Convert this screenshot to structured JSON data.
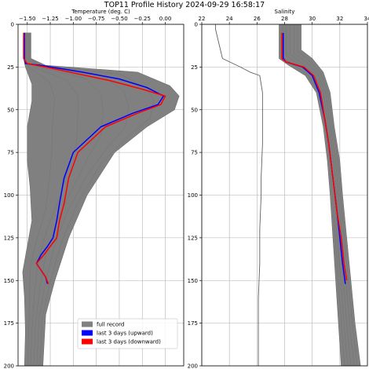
{
  "figure": {
    "title": "TOP11 Profile History 2024-09-29 16:58:17"
  },
  "chart_data": [
    {
      "type": "line",
      "xlabel": "Temperature (deg. C)",
      "ylabel": "",
      "xlim": [
        -1.6,
        0.2
      ],
      "ylim": [
        200,
        0
      ],
      "y_inverted": true,
      "grid": true,
      "xticks": [
        -1.5,
        -1.25,
        -1.0,
        -0.75,
        -0.5,
        -0.25,
        0.0
      ],
      "xtick_labels": [
        "−1.50",
        "−1.25",
        "−1.00",
        "−0.75",
        "−0.50",
        "−0.25",
        "0.00"
      ],
      "yticks": [
        0,
        25,
        50,
        75,
        100,
        125,
        150,
        175,
        200
      ],
      "ytick_labels": [
        "0",
        "25",
        "50",
        "75",
        "100",
        "125",
        "150",
        "175",
        "200"
      ],
      "legend": {
        "position": "lower-center",
        "entries": [
          {
            "label": "full record",
            "color": "#808080"
          },
          {
            "label": "last 3 days (upward)",
            "color": "#0000ff"
          },
          {
            "label": "last 3 days (downward)",
            "color": "#ff0000"
          }
        ]
      },
      "series": [
        {
          "role": "full_record_envelope",
          "color": "#808080",
          "left": [
            {
              "x": -1.54,
              "y": 5
            },
            {
              "x": -1.54,
              "y": 20
            },
            {
              "x": -1.52,
              "y": 25
            },
            {
              "x": -1.45,
              "y": 35
            },
            {
              "x": -1.45,
              "y": 45
            },
            {
              "x": -1.5,
              "y": 60
            },
            {
              "x": -1.5,
              "y": 80
            },
            {
              "x": -1.47,
              "y": 95
            },
            {
              "x": -1.45,
              "y": 115
            },
            {
              "x": -1.5,
              "y": 130
            },
            {
              "x": -1.55,
              "y": 145
            },
            {
              "x": -1.53,
              "y": 160
            },
            {
              "x": -1.52,
              "y": 180
            },
            {
              "x": -1.53,
              "y": 200
            }
          ],
          "right": [
            {
              "x": -1.46,
              "y": 5
            },
            {
              "x": -1.46,
              "y": 20
            },
            {
              "x": -1.3,
              "y": 24
            },
            {
              "x": -0.3,
              "y": 28
            },
            {
              "x": 0.05,
              "y": 36
            },
            {
              "x": 0.15,
              "y": 42
            },
            {
              "x": 0.1,
              "y": 50
            },
            {
              "x": -0.2,
              "y": 60
            },
            {
              "x": -0.55,
              "y": 75
            },
            {
              "x": -0.85,
              "y": 100
            },
            {
              "x": -1.05,
              "y": 125
            },
            {
              "x": -1.2,
              "y": 150
            },
            {
              "x": -1.3,
              "y": 170
            },
            {
              "x": -1.33,
              "y": 200
            }
          ]
        },
        {
          "name": "last 3 days (upward)",
          "color": "#0000ff",
          "x": [
            -1.53,
            -1.53,
            -1.52,
            -1.35,
            -0.9,
            -0.5,
            -0.2,
            -0.02,
            -0.08,
            -0.35,
            -0.7,
            -1.0,
            -1.1,
            -1.15,
            -1.18,
            -1.22,
            -1.28,
            -1.35,
            -1.4,
            -1.3,
            -1.28
          ],
          "y": [
            5,
            20,
            23,
            24,
            28,
            32,
            37,
            42,
            47,
            52,
            60,
            75,
            90,
            105,
            115,
            125,
            130,
            135,
            140,
            148,
            152
          ]
        },
        {
          "name": "last 3 days (downward)",
          "color": "#ff0000",
          "x": [
            -1.54,
            -1.54,
            -1.5,
            -1.3,
            -0.95,
            -0.6,
            -0.25,
            0.0,
            -0.05,
            -0.3,
            -0.65,
            -0.95,
            -1.05,
            -1.1,
            -1.15,
            -1.18,
            -1.25,
            -1.32,
            -1.4,
            -1.3,
            -1.27
          ],
          "y": [
            5,
            20,
            23,
            25,
            29,
            33,
            38,
            42,
            47,
            52,
            60,
            75,
            90,
            105,
            115,
            125,
            130,
            135,
            140,
            148,
            152
          ]
        }
      ]
    },
    {
      "type": "line",
      "xlabel": "Salinity",
      "ylabel": "",
      "xlim": [
        22,
        34
      ],
      "ylim": [
        200,
        0
      ],
      "y_inverted": true,
      "grid": true,
      "xticks": [
        22,
        24,
        26,
        28,
        30,
        32,
        34
      ],
      "xtick_labels": [
        "22",
        "24",
        "26",
        "28",
        "30",
        "32",
        "34"
      ],
      "yticks": [
        0,
        25,
        50,
        75,
        100,
        125,
        150,
        175,
        200
      ],
      "ytick_labels": [
        "0",
        "25",
        "50",
        "75",
        "100",
        "125",
        "150",
        "175",
        "200"
      ],
      "series": [
        {
          "role": "full_record_envelope",
          "color": "#808080",
          "left": [
            {
              "x": 27.6,
              "y": 0
            },
            {
              "x": 27.6,
              "y": 20
            },
            {
              "x": 28.3,
              "y": 24
            },
            {
              "x": 29.5,
              "y": 30
            },
            {
              "x": 30.3,
              "y": 40
            },
            {
              "x": 30.8,
              "y": 60
            },
            {
              "x": 31.1,
              "y": 80
            },
            {
              "x": 31.3,
              "y": 100
            },
            {
              "x": 31.5,
              "y": 125
            },
            {
              "x": 31.7,
              "y": 150
            },
            {
              "x": 31.9,
              "y": 175
            },
            {
              "x": 32.1,
              "y": 200
            }
          ],
          "right": [
            {
              "x": 29.2,
              "y": 0
            },
            {
              "x": 29.2,
              "y": 15
            },
            {
              "x": 30.0,
              "y": 20
            },
            {
              "x": 30.8,
              "y": 28
            },
            {
              "x": 31.3,
              "y": 40
            },
            {
              "x": 31.6,
              "y": 60
            },
            {
              "x": 32.0,
              "y": 80
            },
            {
              "x": 32.2,
              "y": 100
            },
            {
              "x": 32.5,
              "y": 125
            },
            {
              "x": 32.8,
              "y": 150
            },
            {
              "x": 33.1,
              "y": 175
            },
            {
              "x": 33.5,
              "y": 200
            }
          ]
        },
        {
          "role": "full_record_outlier",
          "color": "#606060",
          "x": [
            23.0,
            23.0,
            23.5,
            24.8,
            25.5,
            26.2,
            26.4,
            26.4,
            26.3,
            26.3,
            26.2,
            26.2,
            26.1,
            26.1,
            26.1
          ],
          "y": [
            0,
            3,
            20,
            25,
            28,
            30,
            40,
            70,
            90,
            100,
            120,
            140,
            160,
            180,
            200
          ]
        },
        {
          "name": "last 3 days (upward)",
          "color": "#0000ff",
          "x": [
            27.9,
            27.9,
            28.1,
            29.3,
            30.0,
            30.5,
            30.9,
            31.2,
            31.5,
            31.8,
            32.0,
            32.2,
            32.4
          ],
          "y": [
            5,
            20,
            22,
            25,
            30,
            40,
            55,
            70,
            90,
            110,
            125,
            140,
            152
          ]
        },
        {
          "name": "last 3 days (downward)",
          "color": "#ff0000",
          "x": [
            27.8,
            27.8,
            28.1,
            29.4,
            30.1,
            30.6,
            30.9,
            31.2,
            31.5,
            31.8,
            32.1,
            32.3,
            32.5
          ],
          "y": [
            5,
            20,
            22,
            25,
            30,
            40,
            55,
            70,
            90,
            110,
            125,
            140,
            150
          ]
        }
      ]
    }
  ]
}
